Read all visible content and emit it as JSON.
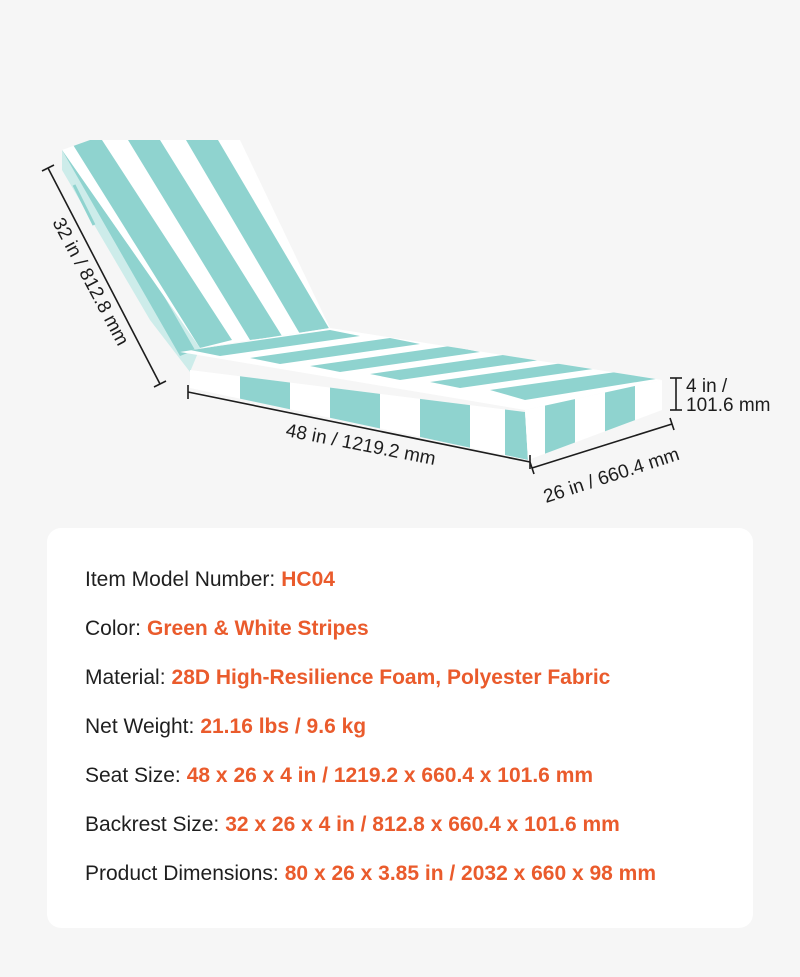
{
  "illustration": {
    "product": "striped-chaise-lounge-cushion",
    "stripe_color": "#8fd3cf",
    "base_color": "#ffffff",
    "dimensions": {
      "backrest_length": "32 in / 812.8 mm",
      "seat_length": "48 in / 1219.2 mm",
      "width": "26 in / 660.4 mm",
      "thickness_line1": "4 in /",
      "thickness_line2": "101.6 mm"
    }
  },
  "specs": [
    {
      "label": "Item Model Number:",
      "value": "HC04"
    },
    {
      "label": "Color:",
      "value": "Green & White Stripes"
    },
    {
      "label": "Material:",
      "value": "28D High-Resilience Foam, Polyester Fabric"
    },
    {
      "label": "Net Weight:",
      "value": "21.16 lbs / 9.6 kg"
    },
    {
      "label": "Seat Size:",
      "value": "48 x 26 x 4 in / 1219.2 x 660.4 x 101.6 mm"
    },
    {
      "label": "Backrest Size:",
      "value": "32 x 26 x 4 in / 812.8 x 660.4 x 101.6 mm"
    },
    {
      "label": "Product Dimensions:",
      "value": "80 x 26 x 3.85 in / 2032 x 660 x 98 mm"
    }
  ],
  "colors": {
    "background": "#f6f6f6",
    "card": "#ffffff",
    "label_text": "#1f1f1f",
    "value_text": "#ea5b2c"
  }
}
